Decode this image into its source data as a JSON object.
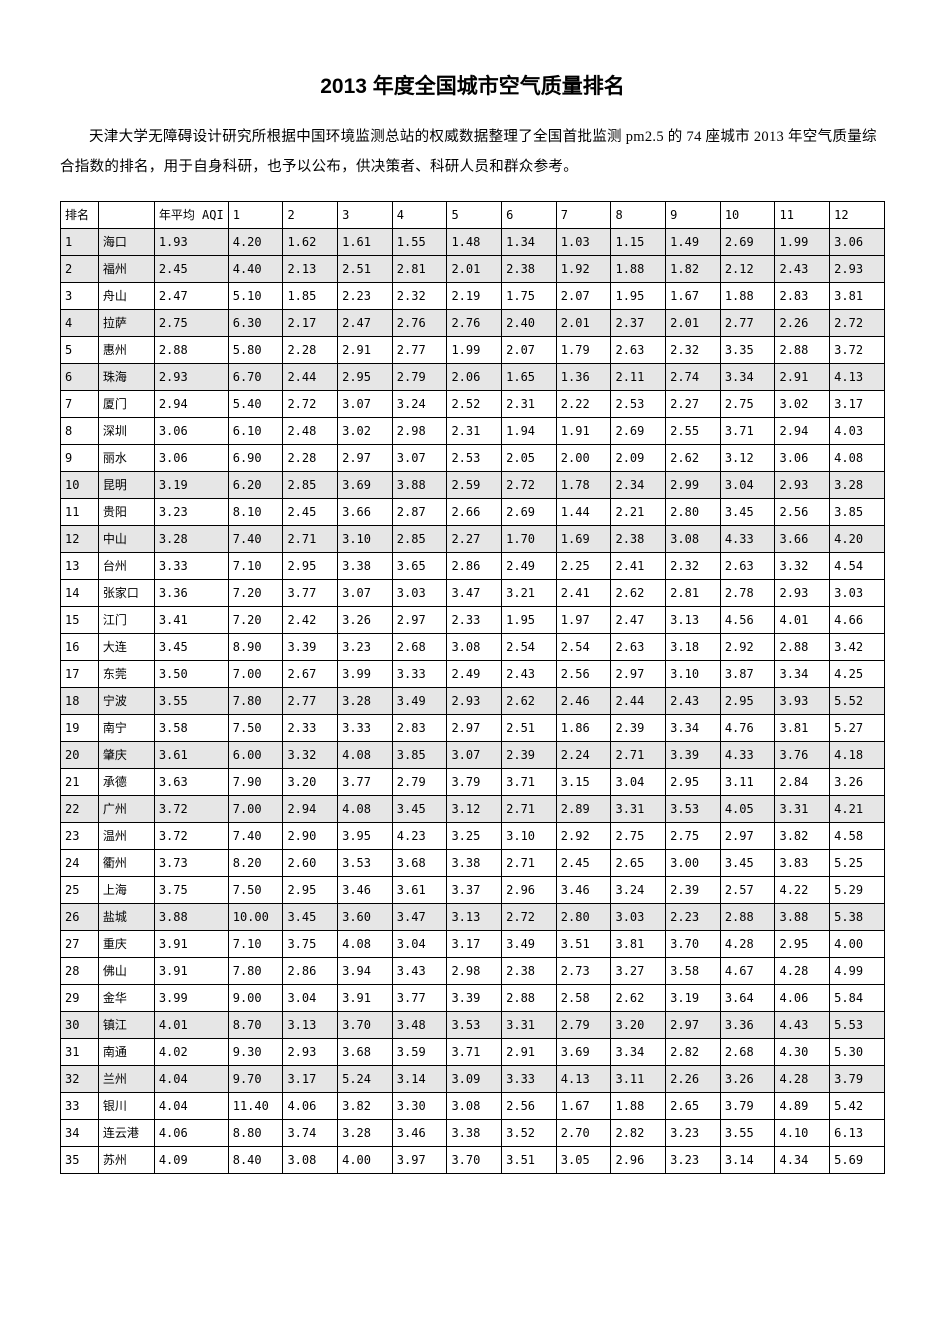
{
  "title": "2013 年度全国城市空气质量排名",
  "intro": "天津大学无障碍设计研究所根据中国环境监测总站的权威数据整理了全国首批监测 pm2.5 的 74 座城市 2013 年空气质量综合指数的排名，用于自身科研，也予以公布，供决策者、科研人员和群众参考。",
  "columns": [
    "排名",
    "",
    "年平均 AQI",
    "1",
    "2",
    "3",
    "4",
    "5",
    "6",
    "7",
    "8",
    "9",
    "10",
    "11",
    "12"
  ],
  "shaded_rows": [
    1,
    2,
    4,
    6,
    10,
    12,
    18,
    20,
    22,
    26,
    30,
    32
  ],
  "rows": [
    [
      1,
      "海口",
      "1.93",
      "4.20",
      "1.62",
      "1.61",
      "1.55",
      "1.48",
      "1.34",
      "1.03",
      "1.15",
      "1.49",
      "2.69",
      "1.99",
      "3.06"
    ],
    [
      2,
      "福州",
      "2.45",
      "4.40",
      "2.13",
      "2.51",
      "2.81",
      "2.01",
      "2.38",
      "1.92",
      "1.88",
      "1.82",
      "2.12",
      "2.43",
      "2.93"
    ],
    [
      3,
      "舟山",
      "2.47",
      "5.10",
      "1.85",
      "2.23",
      "2.32",
      "2.19",
      "1.75",
      "2.07",
      "1.95",
      "1.67",
      "1.88",
      "2.83",
      "3.81"
    ],
    [
      4,
      "拉萨",
      "2.75",
      "6.30",
      "2.17",
      "2.47",
      "2.76",
      "2.76",
      "2.40",
      "2.01",
      "2.37",
      "2.01",
      "2.77",
      "2.26",
      "2.72"
    ],
    [
      5,
      "惠州",
      "2.88",
      "5.80",
      "2.28",
      "2.91",
      "2.77",
      "1.99",
      "2.07",
      "1.79",
      "2.63",
      "2.32",
      "3.35",
      "2.88",
      "3.72"
    ],
    [
      6,
      "珠海",
      "2.93",
      "6.70",
      "2.44",
      "2.95",
      "2.79",
      "2.06",
      "1.65",
      "1.36",
      "2.11",
      "2.74",
      "3.34",
      "2.91",
      "4.13"
    ],
    [
      7,
      "厦门",
      "2.94",
      "5.40",
      "2.72",
      "3.07",
      "3.24",
      "2.52",
      "2.31",
      "2.22",
      "2.53",
      "2.27",
      "2.75",
      "3.02",
      "3.17"
    ],
    [
      8,
      "深圳",
      "3.06",
      "6.10",
      "2.48",
      "3.02",
      "2.98",
      "2.31",
      "1.94",
      "1.91",
      "2.69",
      "2.55",
      "3.71",
      "2.94",
      "4.03"
    ],
    [
      9,
      "丽水",
      "3.06",
      "6.90",
      "2.28",
      "2.97",
      "3.07",
      "2.53",
      "2.05",
      "2.00",
      "2.09",
      "2.62",
      "3.12",
      "3.06",
      "4.08"
    ],
    [
      10,
      "昆明",
      "3.19",
      "6.20",
      "2.85",
      "3.69",
      "3.88",
      "2.59",
      "2.72",
      "1.78",
      "2.34",
      "2.99",
      "3.04",
      "2.93",
      "3.28"
    ],
    [
      11,
      "贵阳",
      "3.23",
      "8.10",
      "2.45",
      "3.66",
      "2.87",
      "2.66",
      "2.69",
      "1.44",
      "2.21",
      "2.80",
      "3.45",
      "2.56",
      "3.85"
    ],
    [
      12,
      "中山",
      "3.28",
      "7.40",
      "2.71",
      "3.10",
      "2.85",
      "2.27",
      "1.70",
      "1.69",
      "2.38",
      "3.08",
      "4.33",
      "3.66",
      "4.20"
    ],
    [
      13,
      "台州",
      "3.33",
      "7.10",
      "2.95",
      "3.38",
      "3.65",
      "2.86",
      "2.49",
      "2.25",
      "2.41",
      "2.32",
      "2.63",
      "3.32",
      "4.54"
    ],
    [
      14,
      "张家口",
      "3.36",
      "7.20",
      "3.77",
      "3.07",
      "3.03",
      "3.47",
      "3.21",
      "2.41",
      "2.62",
      "2.81",
      "2.78",
      "2.93",
      "3.03"
    ],
    [
      15,
      "江门",
      "3.41",
      "7.20",
      "2.42",
      "3.26",
      "2.97",
      "2.33",
      "1.95",
      "1.97",
      "2.47",
      "3.13",
      "4.56",
      "4.01",
      "4.66"
    ],
    [
      16,
      "大连",
      "3.45",
      "8.90",
      "3.39",
      "3.23",
      "2.68",
      "3.08",
      "2.54",
      "2.54",
      "2.63",
      "3.18",
      "2.92",
      "2.88",
      "3.42"
    ],
    [
      17,
      "东莞",
      "3.50",
      "7.00",
      "2.67",
      "3.99",
      "3.33",
      "2.49",
      "2.43",
      "2.56",
      "2.97",
      "3.10",
      "3.87",
      "3.34",
      "4.25"
    ],
    [
      18,
      "宁波",
      "3.55",
      "7.80",
      "2.77",
      "3.28",
      "3.49",
      "2.93",
      "2.62",
      "2.46",
      "2.44",
      "2.43",
      "2.95",
      "3.93",
      "5.52"
    ],
    [
      19,
      "南宁",
      "3.58",
      "7.50",
      "2.33",
      "3.33",
      "2.83",
      "2.97",
      "2.51",
      "1.86",
      "2.39",
      "3.34",
      "4.76",
      "3.81",
      "5.27"
    ],
    [
      20,
      "肇庆",
      "3.61",
      "6.00",
      "3.32",
      "4.08",
      "3.85",
      "3.07",
      "2.39",
      "2.24",
      "2.71",
      "3.39",
      "4.33",
      "3.76",
      "4.18"
    ],
    [
      21,
      "承德",
      "3.63",
      "7.90",
      "3.20",
      "3.77",
      "2.79",
      "3.79",
      "3.71",
      "3.15",
      "3.04",
      "2.95",
      "3.11",
      "2.84",
      "3.26"
    ],
    [
      22,
      "广州",
      "3.72",
      "7.00",
      "2.94",
      "4.08",
      "3.45",
      "3.12",
      "2.71",
      "2.89",
      "3.31",
      "3.53",
      "4.05",
      "3.31",
      "4.21"
    ],
    [
      23,
      "温州",
      "3.72",
      "7.40",
      "2.90",
      "3.95",
      "4.23",
      "3.25",
      "3.10",
      "2.92",
      "2.75",
      "2.75",
      "2.97",
      "3.82",
      "4.58"
    ],
    [
      24,
      "衢州",
      "3.73",
      "8.20",
      "2.60",
      "3.53",
      "3.68",
      "3.38",
      "2.71",
      "2.45",
      "2.65",
      "3.00",
      "3.45",
      "3.83",
      "5.25"
    ],
    [
      25,
      "上海",
      "3.75",
      "7.50",
      "2.95",
      "3.46",
      "3.61",
      "3.37",
      "2.96",
      "3.46",
      "3.24",
      "2.39",
      "2.57",
      "4.22",
      "5.29"
    ],
    [
      26,
      "盐城",
      "3.88",
      "10.00",
      "3.45",
      "3.60",
      "3.47",
      "3.13",
      "2.72",
      "2.80",
      "3.03",
      "2.23",
      "2.88",
      "3.88",
      "5.38"
    ],
    [
      27,
      "重庆",
      "3.91",
      "7.10",
      "3.75",
      "4.08",
      "3.04",
      "3.17",
      "3.49",
      "3.51",
      "3.81",
      "3.70",
      "4.28",
      "2.95",
      "4.00"
    ],
    [
      28,
      "佛山",
      "3.91",
      "7.80",
      "2.86",
      "3.94",
      "3.43",
      "2.98",
      "2.38",
      "2.73",
      "3.27",
      "3.58",
      "4.67",
      "4.28",
      "4.99"
    ],
    [
      29,
      "金华",
      "3.99",
      "9.00",
      "3.04",
      "3.91",
      "3.77",
      "3.39",
      "2.88",
      "2.58",
      "2.62",
      "3.19",
      "3.64",
      "4.06",
      "5.84"
    ],
    [
      30,
      "镇江",
      "4.01",
      "8.70",
      "3.13",
      "3.70",
      "3.48",
      "3.53",
      "3.31",
      "2.79",
      "3.20",
      "2.97",
      "3.36",
      "4.43",
      "5.53"
    ],
    [
      31,
      "南通",
      "4.02",
      "9.30",
      "2.93",
      "3.68",
      "3.59",
      "3.71",
      "2.91",
      "3.69",
      "3.34",
      "2.82",
      "2.68",
      "4.30",
      "5.30"
    ],
    [
      32,
      "兰州",
      "4.04",
      "9.70",
      "3.17",
      "5.24",
      "3.14",
      "3.09",
      "3.33",
      "4.13",
      "3.11",
      "2.26",
      "3.26",
      "4.28",
      "3.79"
    ],
    [
      33,
      "银川",
      "4.04",
      "11.40",
      "4.06",
      "3.82",
      "3.30",
      "3.08",
      "2.56",
      "1.67",
      "1.88",
      "2.65",
      "3.79",
      "4.89",
      "5.42"
    ],
    [
      34,
      "连云港",
      "4.06",
      "8.80",
      "3.74",
      "3.28",
      "3.46",
      "3.38",
      "3.52",
      "2.70",
      "2.82",
      "3.23",
      "3.55",
      "4.10",
      "6.13"
    ],
    [
      35,
      "苏州",
      "4.09",
      "8.40",
      "3.08",
      "4.00",
      "3.97",
      "3.70",
      "3.51",
      "3.05",
      "2.96",
      "3.23",
      "3.14",
      "4.34",
      "5.69"
    ]
  ]
}
